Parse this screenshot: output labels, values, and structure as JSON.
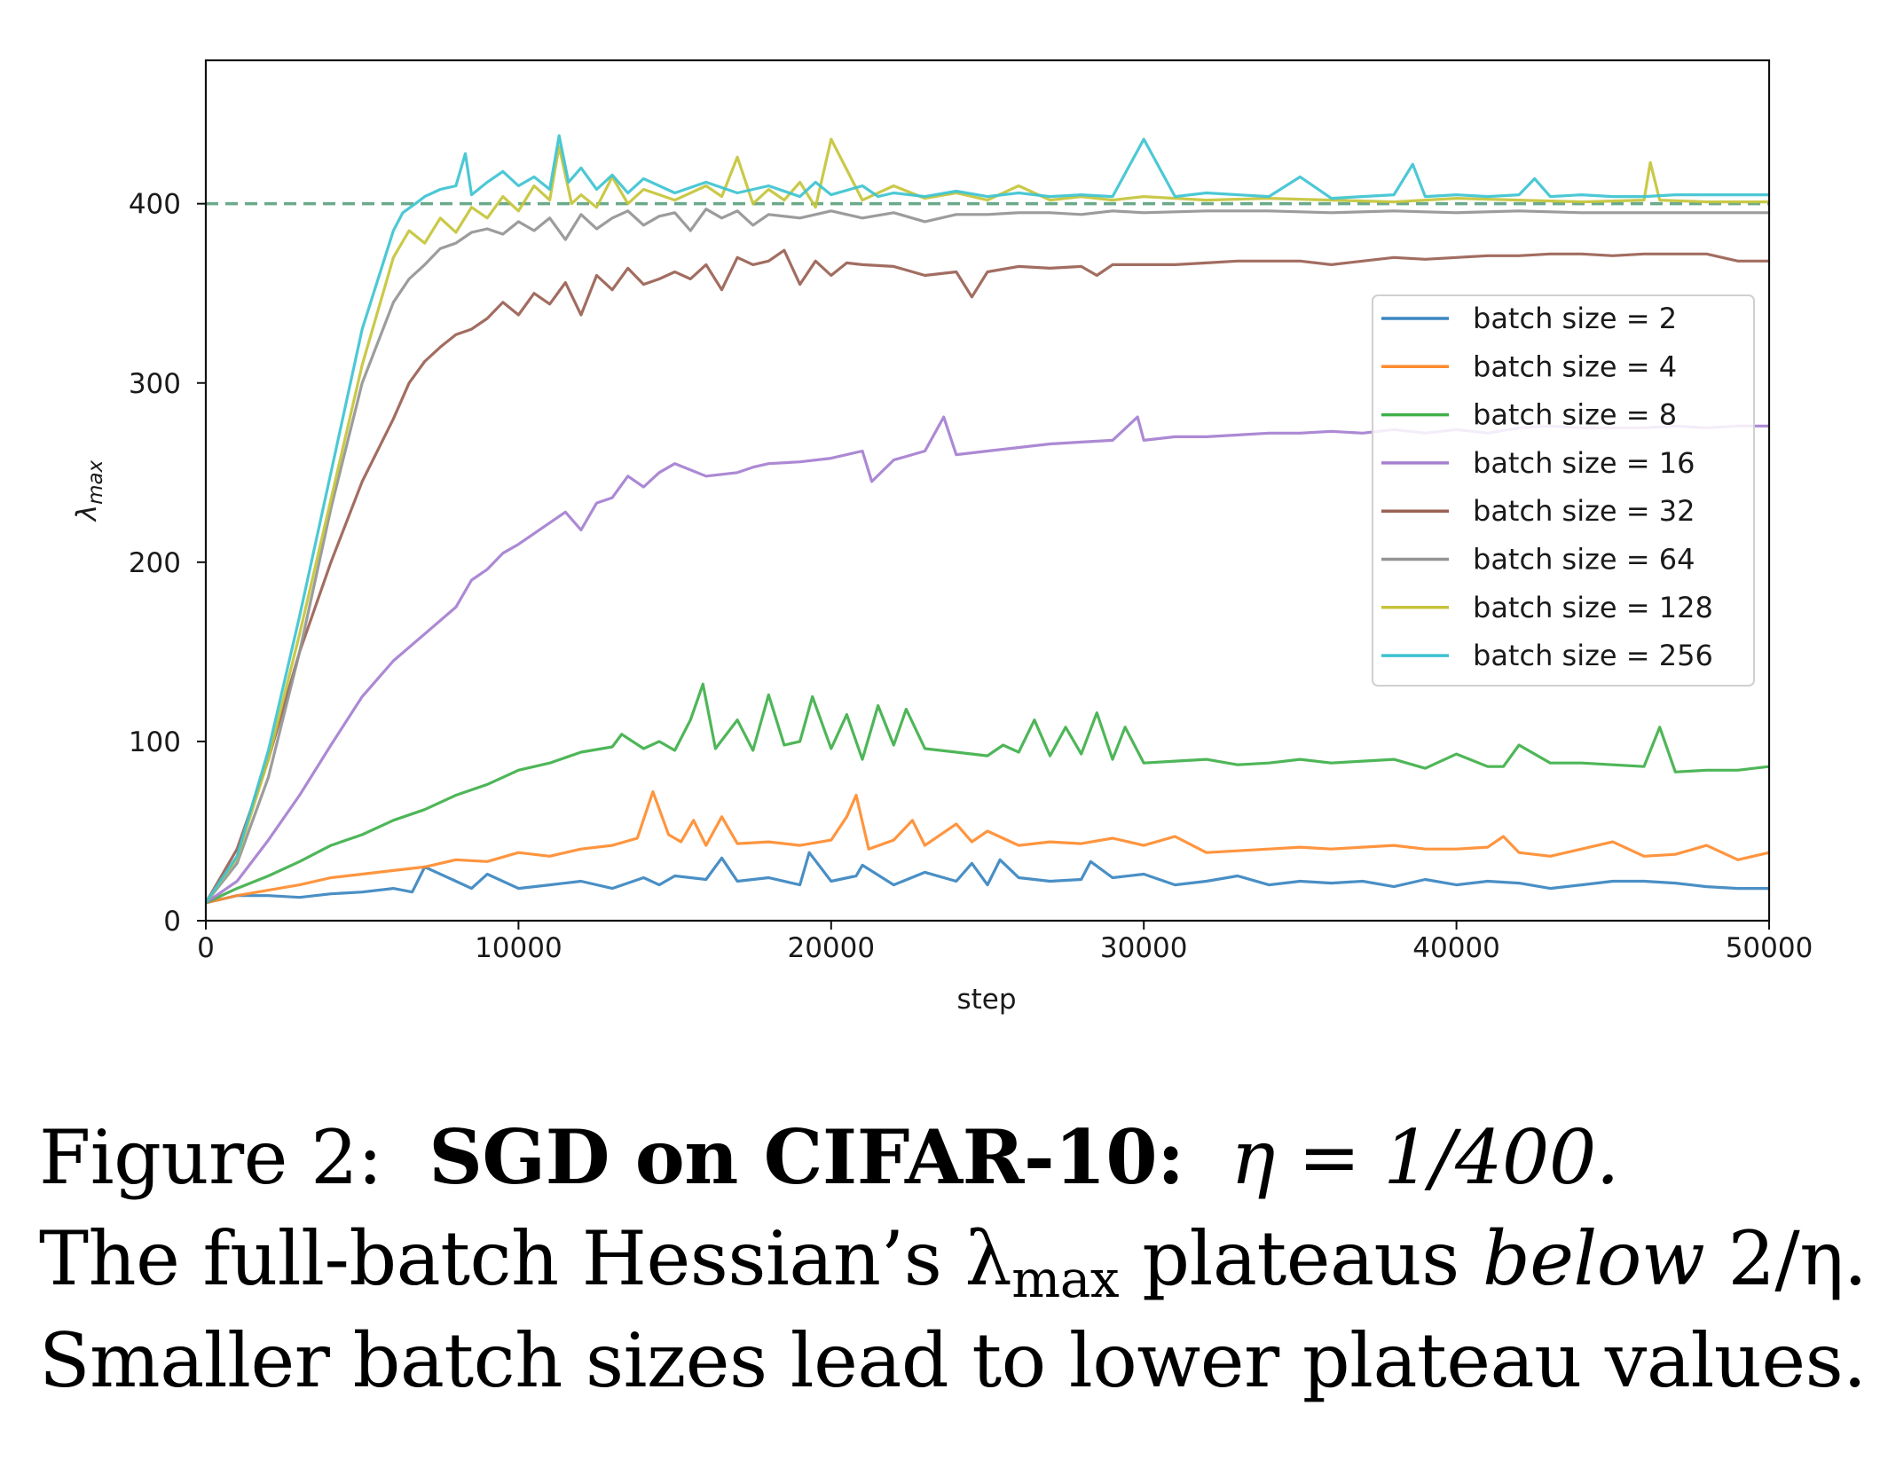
{
  "chart_data": {
    "type": "line",
    "title": "",
    "xlabel": "step",
    "ylabel": "λ_max",
    "ylabel_main": "λ",
    "ylabel_sub": "max",
    "xlim": [
      0,
      50000
    ],
    "ylim": [
      0,
      480
    ],
    "xticks": [
      0,
      10000,
      20000,
      30000,
      40000,
      50000
    ],
    "xtick_labels": [
      "0",
      "10000",
      "20000",
      "30000",
      "40000",
      "50000"
    ],
    "yticks": [
      0,
      100,
      200,
      300,
      400
    ],
    "ytick_labels": [
      "0",
      "100",
      "200",
      "300",
      "400"
    ],
    "grid": false,
    "legend_position": "center-right",
    "reference_line": {
      "y": 400,
      "style": "dashed",
      "color": "#6aaa8a",
      "meaning": "2/η"
    },
    "series": [
      {
        "name": "batch size = 2",
        "color": "#3a86c0",
        "x": [
          0,
          1000,
          2000,
          3000,
          4000,
          5000,
          6000,
          6600,
          7000,
          8000,
          8500,
          9000,
          10000,
          11000,
          12000,
          13000,
          14000,
          14500,
          15000,
          16000,
          16500,
          17000,
          18000,
          19000,
          19300,
          20000,
          20800,
          21000,
          22000,
          23000,
          24000,
          24500,
          25000,
          25400,
          26000,
          27000,
          28000,
          28300,
          29000,
          30000,
          31000,
          32000,
          33000,
          34000,
          35000,
          36000,
          37000,
          38000,
          39000,
          40000,
          41000,
          42000,
          43000,
          44000,
          45000,
          46000,
          47000,
          48000,
          49000,
          50000
        ],
        "values": [
          10,
          14,
          14,
          13,
          15,
          16,
          18,
          16,
          30,
          22,
          18,
          26,
          18,
          20,
          22,
          18,
          24,
          20,
          25,
          23,
          35,
          22,
          24,
          20,
          38,
          22,
          25,
          31,
          20,
          27,
          22,
          32,
          20,
          34,
          24,
          22,
          23,
          33,
          24,
          26,
          20,
          22,
          25,
          20,
          22,
          21,
          22,
          19,
          23,
          20,
          22,
          21,
          18,
          20,
          22,
          22,
          21,
          19,
          18,
          18
        ]
      },
      {
        "name": "batch size = 4",
        "color": "#ff8c2f",
        "x": [
          0,
          1000,
          2000,
          3000,
          4000,
          5000,
          6000,
          7000,
          8000,
          9000,
          10000,
          11000,
          12000,
          13000,
          13800,
          14300,
          14800,
          15200,
          15600,
          16000,
          16500,
          17000,
          18000,
          19000,
          20000,
          20500,
          20800,
          21200,
          22000,
          22600,
          23000,
          24000,
          24500,
          25000,
          26000,
          27000,
          28000,
          29000,
          30000,
          31000,
          32000,
          33000,
          34000,
          35000,
          36000,
          37000,
          38000,
          39000,
          40000,
          41000,
          41500,
          42000,
          43000,
          44000,
          45000,
          46000,
          47000,
          48000,
          49000,
          50000
        ],
        "values": [
          10,
          14,
          17,
          20,
          24,
          26,
          28,
          30,
          34,
          33,
          38,
          36,
          40,
          42,
          46,
          72,
          48,
          44,
          56,
          42,
          58,
          43,
          44,
          42,
          45,
          58,
          70,
          40,
          45,
          56,
          42,
          54,
          44,
          50,
          42,
          44,
          43,
          46,
          42,
          47,
          38,
          39,
          40,
          41,
          40,
          41,
          42,
          40,
          40,
          41,
          47,
          38,
          36,
          40,
          44,
          36,
          37,
          42,
          34,
          38
        ]
      },
      {
        "name": "batch size = 8",
        "color": "#3fb04a",
        "x": [
          0,
          1000,
          2000,
          3000,
          4000,
          5000,
          6000,
          7000,
          8000,
          9000,
          10000,
          11000,
          12000,
          13000,
          13300,
          14000,
          14500,
          15000,
          15500,
          15900,
          16300,
          17000,
          17500,
          18000,
          18500,
          19000,
          19400,
          20000,
          20500,
          21000,
          21500,
          22000,
          22400,
          23000,
          24000,
          25000,
          25500,
          26000,
          26500,
          27000,
          27500,
          28000,
          28500,
          29000,
          29400,
          30000,
          31000,
          32000,
          33000,
          34000,
          35000,
          36000,
          37000,
          38000,
          39000,
          40000,
          41000,
          41500,
          42000,
          43000,
          44000,
          45000,
          46000,
          46500,
          47000,
          48000,
          49000,
          50000
        ],
        "values": [
          10,
          18,
          25,
          33,
          42,
          48,
          56,
          62,
          70,
          76,
          84,
          88,
          94,
          97,
          104,
          96,
          100,
          95,
          112,
          132,
          96,
          112,
          95,
          126,
          98,
          100,
          125,
          96,
          115,
          90,
          120,
          98,
          118,
          96,
          94,
          92,
          98,
          94,
          112,
          92,
          108,
          93,
          116,
          90,
          108,
          88,
          89,
          90,
          87,
          88,
          90,
          88,
          89,
          90,
          85,
          93,
          86,
          86,
          98,
          88,
          88,
          87,
          86,
          108,
          83,
          84,
          84,
          86
        ]
      },
      {
        "name": "batch size = 16",
        "color": "#a57fd0",
        "x": [
          0,
          1000,
          2000,
          3000,
          4000,
          5000,
          6000,
          7000,
          8000,
          8500,
          9000,
          9500,
          10000,
          11000,
          11500,
          12000,
          12500,
          13000,
          13500,
          14000,
          14500,
          15000,
          16000,
          17000,
          17500,
          18000,
          19000,
          20000,
          21000,
          21300,
          22000,
          23000,
          23600,
          24000,
          25000,
          26000,
          27000,
          28000,
          29000,
          29800,
          30000,
          31000,
          32000,
          33000,
          34000,
          35000,
          36000,
          37000,
          38000,
          39000,
          40000,
          41000,
          42000,
          43000,
          44000,
          45000,
          46000,
          47000,
          48000,
          49000,
          50000
        ],
        "values": [
          10,
          22,
          45,
          70,
          98,
          125,
          145,
          160,
          175,
          190,
          196,
          205,
          210,
          222,
          228,
          218,
          233,
          236,
          248,
          242,
          250,
          255,
          248,
          250,
          253,
          255,
          256,
          258,
          262,
          245,
          257,
          262,
          281,
          260,
          262,
          264,
          266,
          267,
          268,
          281,
          268,
          270,
          270,
          271,
          272,
          272,
          273,
          272,
          274,
          272,
          274,
          272,
          275,
          276,
          275,
          275,
          275,
          276,
          275,
          276,
          276
        ]
      },
      {
        "name": "batch size = 32",
        "color": "#9a6154",
        "x": [
          0,
          1000,
          2000,
          3000,
          4000,
          5000,
          6000,
          6500,
          7000,
          7500,
          8000,
          8500,
          9000,
          9500,
          10000,
          10500,
          11000,
          11500,
          12000,
          12500,
          13000,
          13500,
          14000,
          14500,
          15000,
          15500,
          16000,
          16500,
          17000,
          17500,
          18000,
          18500,
          19000,
          19500,
          20000,
          20500,
          21000,
          22000,
          23000,
          24000,
          24500,
          25000,
          26000,
          27000,
          28000,
          28500,
          29000,
          30000,
          31000,
          32000,
          33000,
          34000,
          35000,
          36000,
          37000,
          38000,
          39000,
          40000,
          41000,
          42000,
          43000,
          44000,
          45000,
          46000,
          47000,
          48000,
          49000,
          50000
        ],
        "values": [
          10,
          40,
          90,
          150,
          200,
          245,
          280,
          300,
          312,
          320,
          327,
          330,
          336,
          345,
          338,
          350,
          344,
          356,
          338,
          360,
          352,
          364,
          355,
          358,
          362,
          358,
          366,
          352,
          370,
          366,
          368,
          374,
          355,
          368,
          360,
          367,
          366,
          365,
          360,
          362,
          348,
          362,
          365,
          364,
          365,
          360,
          366,
          366,
          366,
          367,
          368,
          368,
          368,
          366,
          368,
          370,
          369,
          370,
          371,
          371,
          372,
          372,
          371,
          372,
          372,
          372,
          368,
          368
        ]
      },
      {
        "name": "batch size = 64",
        "color": "#949494",
        "x": [
          0,
          1000,
          2000,
          3000,
          4000,
          5000,
          6000,
          6500,
          7000,
          7500,
          8000,
          8500,
          9000,
          9500,
          10000,
          10500,
          11000,
          11500,
          12000,
          12500,
          13000,
          13500,
          14000,
          14500,
          15000,
          15500,
          16000,
          16500,
          17000,
          17500,
          18000,
          19000,
          20000,
          21000,
          22000,
          23000,
          24000,
          25000,
          26000,
          27000,
          28000,
          29000,
          30000,
          32000,
          34000,
          36000,
          38000,
          40000,
          42000,
          44000,
          46000,
          48000,
          50000
        ],
        "values": [
          10,
          32,
          80,
          150,
          230,
          300,
          345,
          358,
          366,
          375,
          378,
          384,
          386,
          383,
          390,
          385,
          392,
          380,
          394,
          386,
          392,
          396,
          388,
          393,
          395,
          385,
          397,
          392,
          396,
          388,
          394,
          392,
          396,
          392,
          395,
          390,
          394,
          394,
          395,
          395,
          394,
          396,
          395,
          396,
          396,
          395,
          396,
          395,
          396,
          395,
          395,
          395,
          395
        ]
      },
      {
        "name": "batch size = 128",
        "color": "#c6c43a",
        "x": [
          0,
          1000,
          2000,
          3000,
          4000,
          5000,
          6000,
          6500,
          7000,
          7500,
          8000,
          8500,
          9000,
          9500,
          10000,
          10500,
          11000,
          11300,
          11700,
          12000,
          12500,
          13000,
          13500,
          14000,
          15000,
          16000,
          16500,
          17000,
          17500,
          18000,
          18500,
          19000,
          19500,
          20000,
          21000,
          22000,
          23000,
          24000,
          25000,
          26000,
          27000,
          28000,
          29000,
          30000,
          32000,
          34000,
          36000,
          38000,
          40000,
          42000,
          44000,
          46000,
          46200,
          46500,
          48000,
          50000
        ],
        "values": [
          10,
          35,
          90,
          160,
          235,
          310,
          370,
          385,
          378,
          392,
          384,
          398,
          392,
          404,
          396,
          410,
          402,
          432,
          400,
          405,
          398,
          415,
          400,
          408,
          402,
          410,
          404,
          426,
          400,
          408,
          402,
          412,
          398,
          436,
          402,
          410,
          403,
          406,
          402,
          410,
          402,
          404,
          402,
          404,
          402,
          403,
          402,
          401,
          403,
          402,
          401,
          402,
          423,
          402,
          401,
          401
        ]
      },
      {
        "name": "batch size = 256",
        "color": "#3dc3d1",
        "x": [
          0,
          1000,
          2000,
          3000,
          4000,
          5000,
          6000,
          6300,
          6700,
          7000,
          7500,
          8000,
          8300,
          8500,
          9000,
          9500,
          10000,
          10500,
          11000,
          11300,
          11600,
          12000,
          12500,
          13000,
          13500,
          14000,
          15000,
          16000,
          17000,
          18000,
          19000,
          19500,
          20000,
          21000,
          21500,
          22000,
          23000,
          24000,
          25000,
          26000,
          27000,
          28000,
          29000,
          30000,
          31000,
          32000,
          34000,
          35000,
          36000,
          38000,
          38600,
          39000,
          40000,
          41000,
          42000,
          42500,
          43000,
          44000,
          45000,
          46000,
          47000,
          48000,
          49000,
          50000
        ],
        "values": [
          10,
          36,
          95,
          170,
          250,
          330,
          385,
          395,
          400,
          404,
          408,
          410,
          428,
          405,
          412,
          418,
          410,
          415,
          408,
          438,
          412,
          420,
          408,
          416,
          406,
          414,
          406,
          412,
          406,
          410,
          404,
          412,
          405,
          410,
          404,
          406,
          404,
          407,
          404,
          406,
          404,
          405,
          404,
          436,
          404,
          406,
          404,
          415,
          403,
          405,
          422,
          404,
          405,
          404,
          405,
          414,
          404,
          405,
          404,
          404,
          405,
          405,
          405,
          405
        ]
      }
    ]
  },
  "caption": {
    "line1": {
      "label": "Figure 2:",
      "bold": "SGD on CIFAR-10:",
      "math": "η = 1/400."
    },
    "line2": {
      "text_a": "The full-batch Hessian’s λ",
      "sub": "max",
      "text_b": " plateaus ",
      "italic": "below",
      "text_c": " 2/η."
    },
    "line3": {
      "text": "Smaller batch sizes lead to lower plateau values."
    }
  }
}
